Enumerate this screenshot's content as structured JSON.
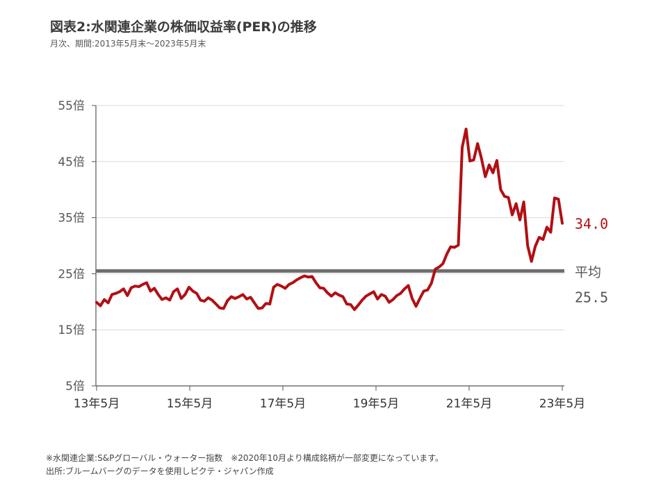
{
  "header": {
    "title": "図表2:水関連企業の株価収益率(PER)の推移",
    "subtitle": "月次、期間:2013年5月末〜2023年5月末"
  },
  "chart_data": {
    "type": "line",
    "title": "図表2:水関連企業の株価収益率(PER)の推移",
    "subtitle": "月次、期間:2013年5月末〜2023年5月末",
    "x_start": "2013-05",
    "x_end": "2023-05",
    "frequency": "monthly",
    "x_ticks": [
      "13年5月",
      "15年5月",
      "17年5月",
      "19年5月",
      "21年5月",
      "23年5月"
    ],
    "y_ticks": [
      "5倍",
      "15倍",
      "25倍",
      "35倍",
      "45倍",
      "55倍"
    ],
    "y_tick_values": [
      5,
      15,
      25,
      35,
      45,
      55
    ],
    "ylim": [
      5,
      55
    ],
    "grid": "horizontal",
    "series": [
      {
        "name": "",
        "color": "#b10f14",
        "values": [
          19.9,
          19.3,
          20.4,
          19.8,
          21.3,
          21.5,
          21.8,
          22.3,
          21.1,
          22.5,
          22.8,
          22.7,
          23.1,
          23.4,
          21.9,
          22.4,
          21.3,
          20.4,
          20.7,
          20.3,
          21.8,
          22.3,
          20.6,
          21.3,
          22.6,
          21.9,
          21.5,
          20.3,
          20.1,
          20.7,
          20.3,
          19.6,
          18.9,
          18.8,
          20.2,
          20.9,
          20.6,
          20.9,
          21.3,
          20.5,
          20.8,
          19.8,
          18.8,
          18.9,
          19.7,
          19.6,
          22.6,
          23.1,
          22.8,
          22.4,
          23.1,
          23.4,
          23.9,
          24.3,
          24.6,
          24.4,
          24.5,
          23.4,
          22.5,
          22.4,
          21.6,
          21.0,
          21.6,
          21.2,
          20.9,
          19.6,
          19.5,
          18.6,
          19.4,
          20.3,
          21.0,
          21.4,
          21.8,
          20.5,
          21.3,
          21.0,
          19.9,
          20.4,
          21.1,
          21.5,
          22.3,
          22.9,
          20.6,
          19.2,
          20.6,
          21.9,
          22.1,
          23.3,
          25.8,
          26.2,
          26.8,
          28.5,
          29.8,
          29.7,
          30.1,
          47.5,
          50.8,
          45.1,
          45.3,
          48.2,
          45.6,
          42.3,
          44.4,
          43.0,
          45.2,
          40.0,
          38.8,
          38.6,
          35.5,
          37.5,
          34.6,
          37.8,
          30.0,
          27.2,
          29.9,
          31.5,
          31.1,
          33.3,
          32.4,
          38.5,
          38.3,
          34.0
        ]
      }
    ],
    "average": {
      "label": "平均",
      "value": 25.5,
      "value_label": "25.5",
      "color": "#6e6e6e"
    },
    "end_label": "34.0"
  },
  "notes": [
    "※水関連企業:S&Pグローバル・ウォーター指数　※2020年10月より構成銘柄が一部変更になっています。",
    "出所:ブルームバーグのデータを使用しピクテ・ジャパン作成"
  ]
}
